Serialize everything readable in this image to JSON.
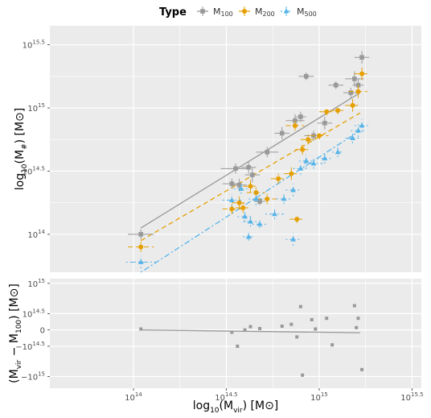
{
  "legend": {
    "title": "Type",
    "entries": [
      {
        "label": "M",
        "sub": "100",
        "color": "#999999",
        "marker": "square",
        "dash": "solid"
      },
      {
        "label": "M",
        "sub": "200",
        "color": "#E69F00",
        "marker": "circle",
        "dash": "dashed"
      },
      {
        "label": "M",
        "sub": "500",
        "color": "#56B4E9",
        "marker": "triangle",
        "dash": "dotdash"
      }
    ]
  },
  "chart_data": {
    "type": "scatter",
    "x_axis": {
      "label_main": "log",
      "label_sub": "10",
      "label_paren": "(M",
      "label_paren_sub": "vir",
      "label_unit": ") [M",
      "label_end": "]",
      "range": [
        13.55,
        15.55
      ],
      "ticks": [
        {
          "value": 14.0,
          "base": "10",
          "exp": "14"
        },
        {
          "value": 14.5,
          "base": "10",
          "exp": "14.5"
        },
        {
          "value": 15.0,
          "base": "10",
          "exp": "15"
        },
        {
          "value": 15.5,
          "base": "10",
          "exp": "15.5"
        }
      ]
    },
    "top_panel": {
      "y_axis": {
        "label_main": "log",
        "label_sub": "10",
        "label_paren": "(M",
        "label_paren_sub": "#",
        "label_unit": ") [M",
        "label_end": "]",
        "range": [
          13.7,
          15.65
        ],
        "ticks": [
          {
            "value": 14.0,
            "base": "10",
            "exp": "14"
          },
          {
            "value": 14.5,
            "base": "10",
            "exp": "14.5"
          },
          {
            "value": 15.0,
            "base": "10",
            "exp": "15"
          },
          {
            "value": 15.5,
            "base": "10",
            "exp": "15.5"
          }
        ]
      },
      "series": [
        {
          "name": "M100",
          "color": "#999999",
          "marker": "square",
          "dash": "solid",
          "fit": {
            "x": [
              14.04,
              15.22
            ],
            "y": [
              14.05,
              15.12
            ]
          },
          "points": [
            {
              "x": 14.04,
              "y": 14.0,
              "xerr": 0.07,
              "yerr": 0.04
            },
            {
              "x": 14.53,
              "y": 14.4,
              "xerr": 0.05,
              "yerr": 0.04
            },
            {
              "x": 14.55,
              "y": 14.52,
              "xerr": 0.08,
              "yerr": 0.04
            },
            {
              "x": 14.57,
              "y": 14.39,
              "xerr": 0.04,
              "yerr": 0.05
            },
            {
              "x": 14.62,
              "y": 14.53,
              "xerr": 0.04,
              "yerr": 0.05
            },
            {
              "x": 14.64,
              "y": 14.47,
              "xerr": 0.04,
              "yerr": 0.06
            },
            {
              "x": 14.72,
              "y": 14.65,
              "xerr": 0.06,
              "yerr": 0.04
            },
            {
              "x": 14.8,
              "y": 14.8,
              "xerr": 0.04,
              "yerr": 0.05
            },
            {
              "x": 14.87,
              "y": 14.9,
              "xerr": 0.05,
              "yerr": 0.05
            },
            {
              "x": 14.9,
              "y": 14.93,
              "xerr": 0.03,
              "yerr": 0.04
            },
            {
              "x": 14.93,
              "y": 15.25,
              "xerr": 0.04,
              "yerr": 0.03
            },
            {
              "x": 14.97,
              "y": 14.78,
              "xerr": 0.05,
              "yerr": 0.04
            },
            {
              "x": 15.03,
              "y": 14.88,
              "xerr": 0.04,
              "yerr": 0.05
            },
            {
              "x": 15.09,
              "y": 15.18,
              "xerr": 0.04,
              "yerr": 0.03
            },
            {
              "x": 15.17,
              "y": 15.12,
              "xerr": 0.04,
              "yerr": 0.04
            },
            {
              "x": 15.19,
              "y": 15.23,
              "xerr": 0.05,
              "yerr": 0.06
            },
            {
              "x": 15.21,
              "y": 15.18,
              "xerr": 0.03,
              "yerr": 0.05
            },
            {
              "x": 15.23,
              "y": 15.4,
              "xerr": 0.04,
              "yerr": 0.05
            },
            {
              "x": 14.68,
              "y": 14.26,
              "xerr": 0.03,
              "yerr": 0.03
            }
          ]
        },
        {
          "name": "M200",
          "color": "#E69F00",
          "marker": "circle",
          "dash": "dashed",
          "fit": {
            "x": [
              14.04,
              15.22
            ],
            "y": [
              13.95,
              14.96
            ]
          },
          "points": [
            {
              "x": 14.04,
              "y": 13.9,
              "xerr": 0.07,
              "yerr": 0.04
            },
            {
              "x": 14.53,
              "y": 14.2,
              "xerr": 0.05,
              "yerr": 0.04
            },
            {
              "x": 14.57,
              "y": 14.25,
              "xerr": 0.04,
              "yerr": 0.05
            },
            {
              "x": 14.59,
              "y": 14.21,
              "xerr": 0.04,
              "yerr": 0.04
            },
            {
              "x": 14.63,
              "y": 14.38,
              "xerr": 0.04,
              "yerr": 0.05
            },
            {
              "x": 14.66,
              "y": 14.33,
              "xerr": 0.05,
              "yerr": 0.04
            },
            {
              "x": 14.72,
              "y": 14.28,
              "xerr": 0.06,
              "yerr": 0.04
            },
            {
              "x": 14.78,
              "y": 14.44,
              "xerr": 0.04,
              "yerr": 0.04
            },
            {
              "x": 14.85,
              "y": 14.48,
              "xerr": 0.04,
              "yerr": 0.05
            },
            {
              "x": 14.87,
              "y": 14.86,
              "xerr": 0.05,
              "yerr": 0.04
            },
            {
              "x": 14.91,
              "y": 14.67,
              "xerr": 0.04,
              "yerr": 0.04
            },
            {
              "x": 14.94,
              "y": 14.75,
              "xerr": 0.04,
              "yerr": 0.04
            },
            {
              "x": 15.0,
              "y": 14.78,
              "xerr": 0.05,
              "yerr": 0.03
            },
            {
              "x": 15.04,
              "y": 14.97,
              "xerr": 0.04,
              "yerr": 0.03
            },
            {
              "x": 15.1,
              "y": 14.98,
              "xerr": 0.04,
              "yerr": 0.03
            },
            {
              "x": 15.18,
              "y": 15.02,
              "xerr": 0.04,
              "yerr": 0.05
            },
            {
              "x": 15.21,
              "y": 15.13,
              "xerr": 0.05,
              "yerr": 0.05
            },
            {
              "x": 15.23,
              "y": 15.27,
              "xerr": 0.04,
              "yerr": 0.05
            },
            {
              "x": 14.88,
              "y": 14.12,
              "xerr": 0.04,
              "yerr": 0.03
            }
          ]
        },
        {
          "name": "M500",
          "color": "#56B4E9",
          "marker": "triangle",
          "dash": "dotdash",
          "fit": {
            "x": [
              14.04,
              15.22
            ],
            "y": [
              13.7,
              14.82
            ]
          },
          "points": [
            {
              "x": 14.04,
              "y": 13.78,
              "xerr": 0.08,
              "yerr": 0.05
            },
            {
              "x": 14.53,
              "y": 14.27,
              "xerr": 0.05,
              "yerr": 0.05
            },
            {
              "x": 14.58,
              "y": 14.36,
              "xerr": 0.04,
              "yerr": 0.04
            },
            {
              "x": 14.6,
              "y": 14.14,
              "xerr": 0.04,
              "yerr": 0.04
            },
            {
              "x": 14.63,
              "y": 14.1,
              "xerr": 0.04,
              "yerr": 0.04
            },
            {
              "x": 14.66,
              "y": 14.28,
              "xerr": 0.04,
              "yerr": 0.05
            },
            {
              "x": 14.68,
              "y": 14.08,
              "xerr": 0.04,
              "yerr": 0.03
            },
            {
              "x": 14.76,
              "y": 14.16,
              "xerr": 0.05,
              "yerr": 0.04
            },
            {
              "x": 14.81,
              "y": 14.28,
              "xerr": 0.04,
              "yerr": 0.04
            },
            {
              "x": 14.86,
              "y": 14.35,
              "xerr": 0.04,
              "yerr": 0.05
            },
            {
              "x": 14.9,
              "y": 14.52,
              "xerr": 0.04,
              "yerr": 0.05
            },
            {
              "x": 14.93,
              "y": 14.58,
              "xerr": 0.04,
              "yerr": 0.05
            },
            {
              "x": 14.97,
              "y": 14.56,
              "xerr": 0.05,
              "yerr": 0.04
            },
            {
              "x": 15.03,
              "y": 14.6,
              "xerr": 0.04,
              "yerr": 0.04
            },
            {
              "x": 15.1,
              "y": 14.65,
              "xerr": 0.03,
              "yerr": 0.04
            },
            {
              "x": 15.18,
              "y": 14.76,
              "xerr": 0.04,
              "yerr": 0.04
            },
            {
              "x": 15.21,
              "y": 14.82,
              "xerr": 0.04,
              "yerr": 0.05
            },
            {
              "x": 15.23,
              "y": 14.86,
              "xerr": 0.04,
              "yerr": 0.05
            },
            {
              "x": 14.62,
              "y": 13.98,
              "xerr": 0.03,
              "yerr": 0.03
            },
            {
              "x": 14.86,
              "y": 13.96,
              "xerr": 0.04,
              "yerr": 0.05
            }
          ]
        }
      ]
    },
    "bottom_panel": {
      "y_axis": {
        "label_main": "(M",
        "label_sub1": "vir",
        "label_mid": " − M",
        "label_sub2": "100",
        "label_unit": ") [M",
        "label_end": "]",
        "range": [
          -1.25,
          1.1
        ],
        "ticks": [
          {
            "value": 1.0,
            "base": "10",
            "exp": "15",
            "sign": ""
          },
          {
            "value": 0.35,
            "base": "10",
            "exp": "14.5",
            "sign": ""
          },
          {
            "value": 0.0,
            "base": "0",
            "exp": "",
            "sign": ""
          },
          {
            "value": -0.35,
            "base": "10",
            "exp": "14.5",
            "sign": "−"
          },
          {
            "value": -1.0,
            "base": "10",
            "exp": "15",
            "sign": "−"
          }
        ]
      },
      "fit": {
        "x": [
          14.04,
          15.22
        ],
        "y": [
          0.0,
          -0.06
        ]
      },
      "series": {
        "name": "M100",
        "color": "#999999",
        "points": [
          {
            "x": 14.04,
            "y": 0.02
          },
          {
            "x": 14.53,
            "y": -0.05
          },
          {
            "x": 14.56,
            "y": -0.35
          },
          {
            "x": 14.6,
            "y": 0.0
          },
          {
            "x": 14.63,
            "y": 0.07
          },
          {
            "x": 14.68,
            "y": 0.03
          },
          {
            "x": 14.8,
            "y": 0.08
          },
          {
            "x": 14.85,
            "y": 0.12
          },
          {
            "x": 14.88,
            "y": -0.15
          },
          {
            "x": 14.9,
            "y": 0.5
          },
          {
            "x": 14.91,
            "y": -0.97
          },
          {
            "x": 14.96,
            "y": 0.22
          },
          {
            "x": 14.98,
            "y": 0.02
          },
          {
            "x": 15.04,
            "y": 0.25
          },
          {
            "x": 15.07,
            "y": -0.32
          },
          {
            "x": 15.19,
            "y": 0.52
          },
          {
            "x": 15.2,
            "y": 0.05
          },
          {
            "x": 15.21,
            "y": 0.25
          },
          {
            "x": 15.23,
            "y": -0.85
          }
        ]
      }
    }
  }
}
